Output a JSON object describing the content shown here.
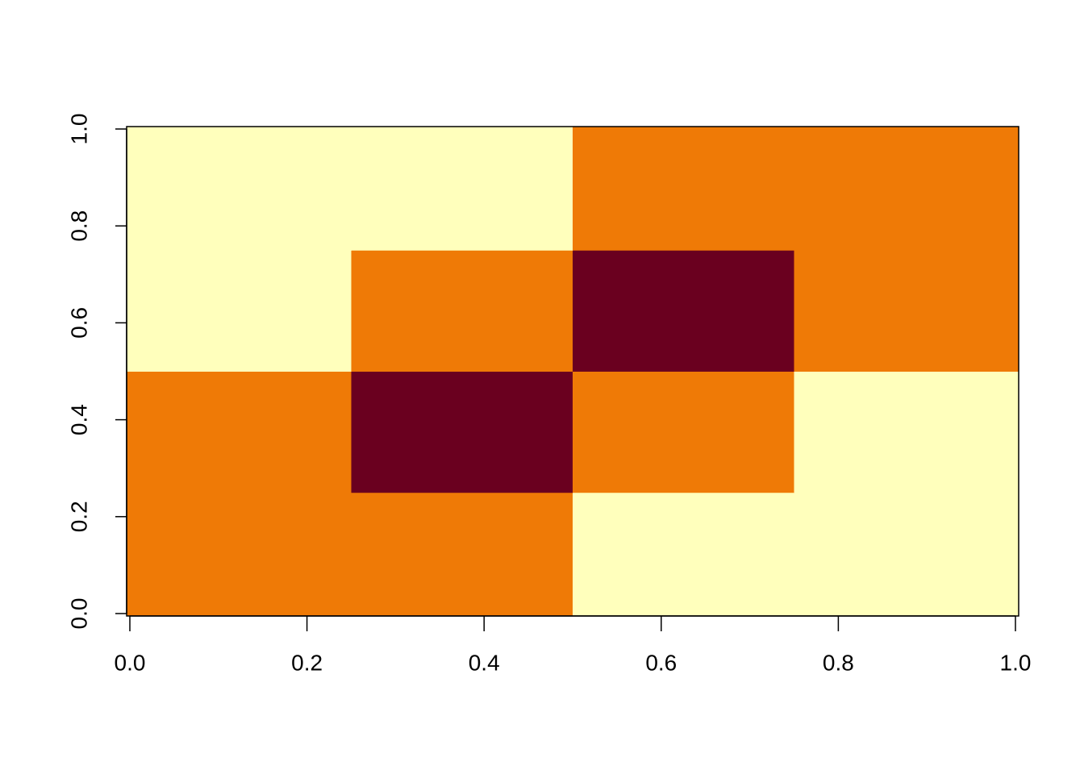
{
  "chart_data": {
    "type": "heatmap",
    "x": [
      0,
      0.25,
      0.5,
      0.75,
      1
    ],
    "y": [
      0,
      0.25,
      0.5,
      0.75,
      1
    ],
    "z": [
      [
        1,
        1,
        2,
        2
      ],
      [
        1,
        0,
        1,
        2
      ],
      [
        2,
        1,
        0,
        1
      ],
      [
        2,
        2,
        1,
        1
      ]
    ],
    "colorscale": [
      {
        "value": 0,
        "color": "#6a001f"
      },
      {
        "value": 1,
        "color": "#ef7a06"
      },
      {
        "value": 2,
        "color": "#ffffbc"
      }
    ],
    "xlim": [
      0,
      1
    ],
    "ylim": [
      0,
      1
    ],
    "xticks": [
      {
        "value": 0,
        "label": "0.0"
      },
      0.2,
      0.4,
      0.6,
      0.8,
      {
        "value": 1,
        "label": "1.0"
      }
    ],
    "yticks": [
      {
        "value": 0,
        "label": "0.0"
      },
      0.2,
      0.4,
      0.6,
      0.8,
      {
        "value": 1,
        "label": "1.0"
      }
    ]
  }
}
